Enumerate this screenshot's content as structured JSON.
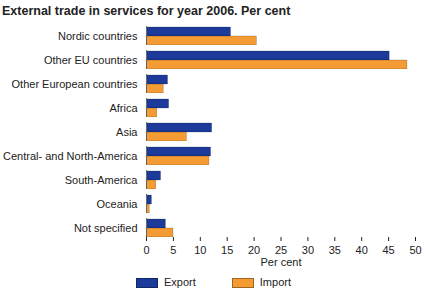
{
  "chart_data": {
    "type": "bar",
    "orientation": "horizontal",
    "title": "External trade in services for year 2006. Per cent",
    "x_label": "Per cent",
    "categories": [
      "Nordic countries",
      "Other EU countries",
      "Other European countries",
      "Africa",
      "Asia",
      "Central- and North-America",
      "South-America",
      "Oceania",
      "Not specified"
    ],
    "series": [
      {
        "name": "Export",
        "color": "#1c3a9a",
        "values": [
          15.7,
          45.2,
          4.0,
          4.2,
          12.2,
          12.0,
          2.7,
          1.0,
          3.6
        ]
      },
      {
        "name": "Import",
        "color": "#f59b33",
        "values": [
          20.5,
          48.5,
          3.2,
          2.0,
          7.5,
          11.7,
          1.8,
          0.6,
          5.0
        ]
      }
    ],
    "xlim": [
      0,
      50
    ],
    "xticks": [
      0,
      5,
      10,
      15,
      20,
      25,
      30,
      35,
      40,
      45,
      50
    ],
    "grid": false,
    "legend": "bottom",
    "data_labels": false
  }
}
